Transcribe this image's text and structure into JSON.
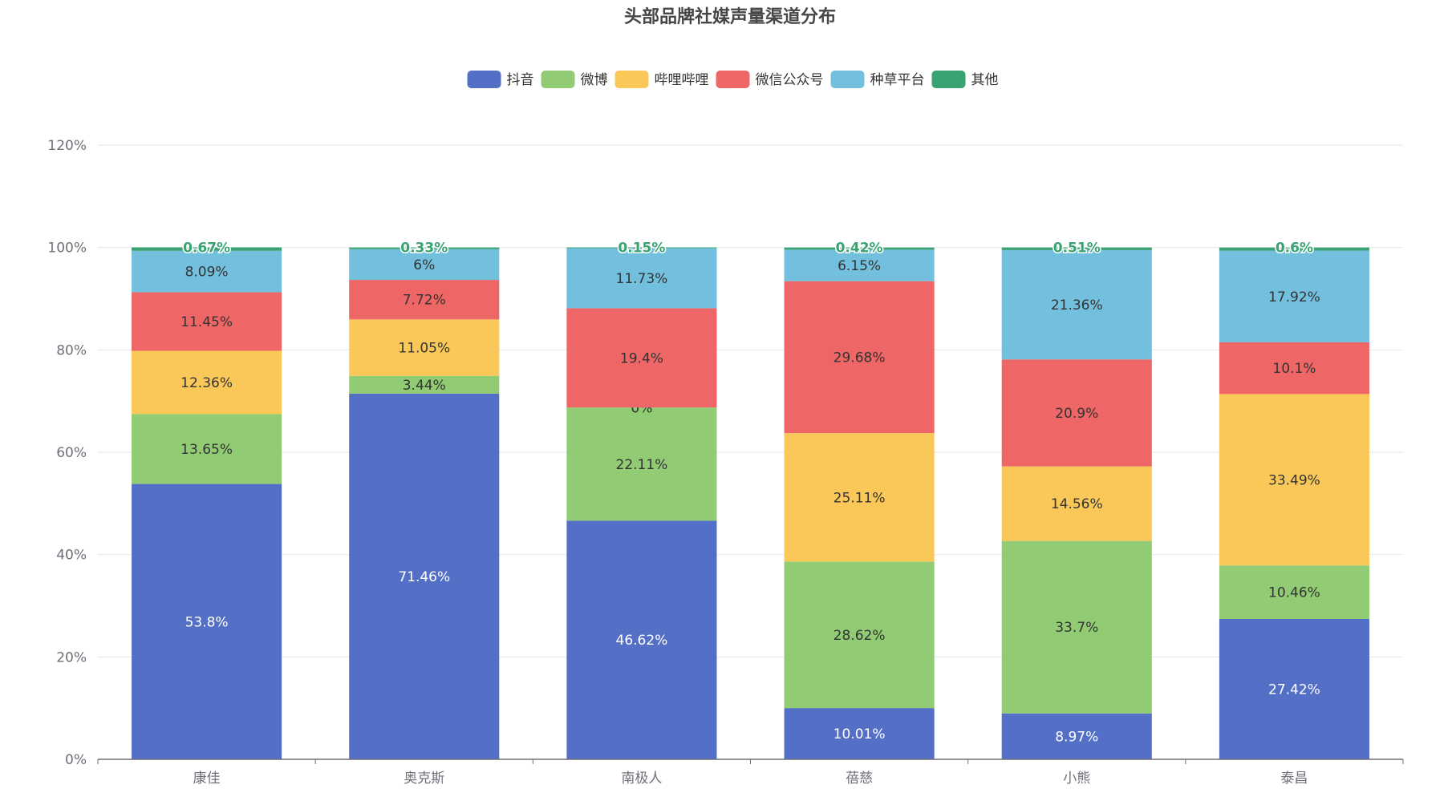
{
  "chart_data": {
    "type": "bar",
    "stacked": true,
    "title": "头部品牌社媒声量渠道分布",
    "xlabel": "",
    "ylabel": "",
    "ylim": [
      0,
      120
    ],
    "yticks": [
      "0%",
      "20%",
      "40%",
      "60%",
      "80%",
      "100%",
      "120%"
    ],
    "grid": true,
    "legend_position": "top-center",
    "categories": [
      "康佳",
      "奥克斯",
      "南极人",
      "蓓慈",
      "小熊",
      "泰昌"
    ],
    "series": [
      {
        "name": "抖音",
        "color": "#5470c6",
        "values": [
          53.8,
          71.46,
          46.62,
          10.01,
          8.97,
          27.42
        ]
      },
      {
        "name": "微博",
        "color": "#91cc75",
        "values": [
          13.65,
          3.44,
          22.11,
          28.62,
          33.7,
          10.46
        ]
      },
      {
        "name": "哔哩哔哩",
        "color": "#fac858",
        "values": [
          12.36,
          11.05,
          0,
          25.11,
          14.56,
          33.49
        ]
      },
      {
        "name": "微信公众号",
        "color": "#ee6666",
        "values": [
          11.45,
          7.72,
          19.4,
          29.68,
          20.9,
          10.1
        ]
      },
      {
        "name": "种草平台",
        "color": "#73c0de",
        "values": [
          8.09,
          6,
          11.73,
          6.15,
          21.36,
          17.92
        ]
      },
      {
        "name": "其他",
        "color": "#3ba272",
        "values": [
          0.67,
          0.33,
          0.15,
          0.42,
          0.51,
          0.6
        ]
      }
    ]
  }
}
